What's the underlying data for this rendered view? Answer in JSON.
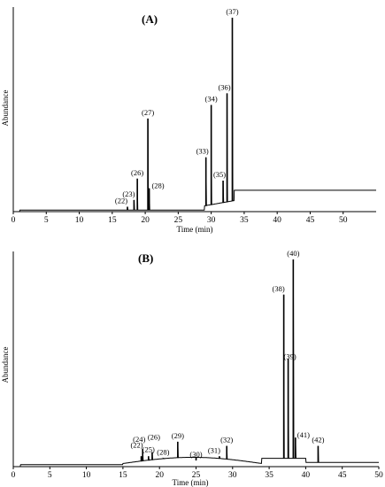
{
  "chart_data": [
    {
      "type": "line",
      "panel_label": "(A)",
      "xlabel": "Time (min)",
      "ylabel": "Abundance",
      "xlim": [
        0,
        55
      ],
      "x_ticks": [
        0,
        5,
        10,
        15,
        20,
        25,
        30,
        35,
        40,
        45,
        50
      ],
      "y_ticks_shown": false,
      "grid": false,
      "peaks": [
        {
          "label": "(22)",
          "x": 17.3,
          "y": 0.025
        },
        {
          "label": "(23)",
          "x": 18.3,
          "y": 0.06
        },
        {
          "label": "(26)",
          "x": 18.8,
          "y": 0.17
        },
        {
          "label": "(28)",
          "x": 20.6,
          "y": 0.12
        },
        {
          "label": "(27)",
          "x": 20.4,
          "y": 0.48
        },
        {
          "label": "(33)",
          "x": 29.2,
          "y": 0.28
        },
        {
          "label": "(35)",
          "x": 31.8,
          "y": 0.16
        },
        {
          "label": "(34)",
          "x": 30.0,
          "y": 0.55
        },
        {
          "label": "(36)",
          "x": 32.4,
          "y": 0.61
        },
        {
          "label": "(37)",
          "x": 33.2,
          "y": 1.0
        }
      ]
    },
    {
      "type": "line",
      "panel_label": "(B)",
      "xlabel": "Time (min)",
      "ylabel": "Abundance",
      "xlim": [
        0,
        50
      ],
      "x_ticks": [
        0,
        5,
        10,
        15,
        20,
        25,
        30,
        35,
        40,
        45,
        50
      ],
      "y_ticks_shown": false,
      "grid": false,
      "peaks": [
        {
          "label": "(22)",
          "x": 17.5,
          "y": 0.05
        },
        {
          "label": "(24)",
          "x": 17.7,
          "y": 0.085
        },
        {
          "label": "(25)",
          "x": 18.5,
          "y": 0.05
        },
        {
          "label": "(26)",
          "x": 19.0,
          "y": 0.07
        },
        {
          "label": "(28)",
          "x": 20.5,
          "y": 0.04
        },
        {
          "label": "(29)",
          "x": 22.5,
          "y": 0.12
        },
        {
          "label": "(30)",
          "x": 25.0,
          "y": 0.03
        },
        {
          "label": "(31)",
          "x": 28.2,
          "y": 0.05
        },
        {
          "label": "(32)",
          "x": 29.2,
          "y": 0.1
        },
        {
          "label": "(38)",
          "x": 37.0,
          "y": 0.83
        },
        {
          "label": "(39)",
          "x": 37.6,
          "y": 0.52
        },
        {
          "label": "(40)",
          "x": 38.3,
          "y": 1.0
        },
        {
          "label": "(41)",
          "x": 38.6,
          "y": 0.14
        },
        {
          "label": "(42)",
          "x": 41.7,
          "y": 0.1
        }
      ]
    }
  ]
}
